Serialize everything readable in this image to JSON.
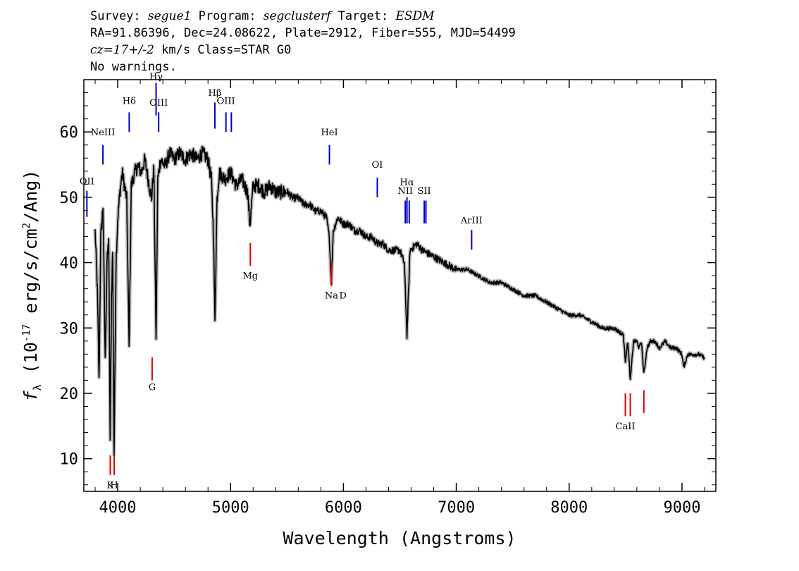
{
  "header": {
    "survey_label": "Survey: ",
    "survey": "segue1",
    "program_label": " Program: ",
    "program": "segclusterf",
    "target_label": " Target: ",
    "target": "ESDM",
    "line2": "RA=91.86396, Dec=24.08622, Plate=2912, Fiber=555, MJD=54499",
    "cz": "cz=17+/-2",
    "line3_rest": " km/s Class=STAR G0",
    "line4": "No warnings."
  },
  "chart_data": {
    "type": "line",
    "xlabel": "Wavelength (Angstroms)",
    "ylabel": "f_λ (10^-17 erg/s/cm^2/Ang)",
    "xlim": [
      3700,
      9300
    ],
    "ylim": [
      5,
      68
    ],
    "x_ticks": [
      4000,
      5000,
      6000,
      7000,
      8000,
      9000
    ],
    "y_ticks": [
      10,
      20,
      30,
      40,
      50,
      60
    ],
    "colors": {
      "spectrum": "#000000",
      "error": "#b8b8b8",
      "emission": "#0000cc",
      "absorption": "#dd0000"
    },
    "series": [
      {
        "values": [
          [
            3800,
            45
          ],
          [
            3820,
            36
          ],
          [
            3835,
            22
          ],
          [
            3850,
            44
          ],
          [
            3870,
            49
          ],
          [
            3889,
            25
          ],
          [
            3905,
            40
          ],
          [
            3920,
            44
          ],
          [
            3933,
            13
          ],
          [
            3945,
            35
          ],
          [
            3955,
            42
          ],
          [
            3968,
            11
          ],
          [
            3985,
            40
          ],
          [
            4000,
            47
          ],
          [
            4020,
            51
          ],
          [
            4040,
            54
          ],
          [
            4060,
            52
          ],
          [
            4080,
            50
          ],
          [
            4101,
            27
          ],
          [
            4120,
            52
          ],
          [
            4150,
            54
          ],
          [
            4180,
            55
          ],
          [
            4210,
            54
          ],
          [
            4240,
            56
          ],
          [
            4270,
            53
          ],
          [
            4300,
            50
          ],
          [
            4320,
            55
          ],
          [
            4340,
            28
          ],
          [
            4355,
            53
          ],
          [
            4380,
            56
          ],
          [
            4420,
            55
          ],
          [
            4460,
            57
          ],
          [
            4500,
            56
          ],
          [
            4550,
            57
          ],
          [
            4600,
            56
          ],
          [
            4650,
            57
          ],
          [
            4700,
            56
          ],
          [
            4750,
            57
          ],
          [
            4800,
            56
          ],
          [
            4830,
            53
          ],
          [
            4850,
            44
          ],
          [
            4861,
            31
          ],
          [
            4880,
            50
          ],
          [
            4900,
            54
          ],
          [
            4950,
            53
          ],
          [
            5000,
            54
          ],
          [
            5050,
            52
          ],
          [
            5100,
            53
          ],
          [
            5150,
            51
          ],
          [
            5172,
            46
          ],
          [
            5200,
            52
          ],
          [
            5250,
            52
          ],
          [
            5300,
            51
          ],
          [
            5350,
            52
          ],
          [
            5400,
            51
          ],
          [
            5450,
            51
          ],
          [
            5500,
            51
          ],
          [
            5550,
            50
          ],
          [
            5600,
            50
          ],
          [
            5650,
            49
          ],
          [
            5700,
            49
          ],
          [
            5750,
            48
          ],
          [
            5800,
            48
          ],
          [
            5850,
            47
          ],
          [
            5875,
            44
          ],
          [
            5893,
            37
          ],
          [
            5910,
            45
          ],
          [
            5950,
            47
          ],
          [
            6000,
            46
          ],
          [
            6050,
            46
          ],
          [
            6100,
            45
          ],
          [
            6150,
            45
          ],
          [
            6200,
            44
          ],
          [
            6250,
            44
          ],
          [
            6300,
            43
          ],
          [
            6350,
            43
          ],
          [
            6400,
            42
          ],
          [
            6450,
            42
          ],
          [
            6500,
            42
          ],
          [
            6540,
            40
          ],
          [
            6563,
            29
          ],
          [
            6590,
            42
          ],
          [
            6650,
            43
          ],
          [
            6700,
            42
          ],
          [
            6800,
            41
          ],
          [
            6900,
            40
          ],
          [
            7000,
            39
          ],
          [
            7100,
            39
          ],
          [
            7200,
            38
          ],
          [
            7300,
            37
          ],
          [
            7400,
            37
          ],
          [
            7500,
            36
          ],
          [
            7600,
            35
          ],
          [
            7700,
            35
          ],
          [
            7800,
            34
          ],
          [
            7900,
            33
          ],
          [
            8000,
            32
          ],
          [
            8100,
            32
          ],
          [
            8200,
            31
          ],
          [
            8300,
            30
          ],
          [
            8400,
            30
          ],
          [
            8480,
            29
          ],
          [
            8498,
            25
          ],
          [
            8520,
            28
          ],
          [
            8542,
            22
          ],
          [
            8570,
            28
          ],
          [
            8600,
            28
          ],
          [
            8620,
            27
          ],
          [
            8640,
            28
          ],
          [
            8662,
            23
          ],
          [
            8690,
            27
          ],
          [
            8720,
            28
          ],
          [
            8760,
            28
          ],
          [
            8800,
            27
          ],
          [
            8850,
            28
          ],
          [
            8900,
            27
          ],
          [
            8950,
            27
          ],
          [
            9000,
            26
          ],
          [
            9015,
            24
          ],
          [
            9050,
            26
          ],
          [
            9100,
            26
          ],
          [
            9150,
            26
          ],
          [
            9200,
            25.5
          ]
        ]
      }
    ],
    "emission_lines": [
      {
        "label": "OII",
        "wave": 3727,
        "y0": 47,
        "y1": 51,
        "label_y": 52
      },
      {
        "label": "NeIII",
        "wave": 3869,
        "y0": 55,
        "y1": 58,
        "label_y": 59.5
      },
      {
        "label": "Hδ",
        "wave": 4102,
        "y0": 60,
        "y1": 63,
        "label_y": 64.3
      },
      {
        "label": "Hγ",
        "wave": 4340,
        "y0": 62.5,
        "y1": 67.5,
        "label_y": 68
      },
      {
        "label": "OIII",
        "wave": 4363,
        "y0": 60,
        "y1": 63,
        "label_y": 64
      },
      {
        "label": "Hβ",
        "wave": 4861,
        "y0": 60.5,
        "y1": 64.5,
        "label_y": 65.5
      },
      {
        "label": "OIII",
        "wave": 4959,
        "y0": 60,
        "y1": 63,
        "label_y": 64.3
      },
      {
        "label": "OIII",
        "wave": 5007,
        "y0": 60,
        "y1": 63,
        "label_y": null
      },
      {
        "label": "HeI",
        "wave": 5876,
        "y0": 55,
        "y1": 58,
        "label_y": 59.5
      },
      {
        "label": "OI",
        "wave": 6300,
        "y0": 50,
        "y1": 53,
        "label_y": 54.5
      },
      {
        "label": "NII",
        "wave": 6548,
        "y0": 46,
        "y1": 49.5,
        "label_y": 50.5
      },
      {
        "label": "Hα",
        "wave": 6563,
        "y0": 46,
        "y1": 50,
        "label_y": 51.8
      },
      {
        "label": "NII",
        "wave": 6583,
        "y0": 46,
        "y1": 49.5,
        "label_y": null
      },
      {
        "label": "SII",
        "wave": 6716,
        "y0": 46,
        "y1": 49.5,
        "label_y": 50.5
      },
      {
        "label": "SII",
        "wave": 6731,
        "y0": 46,
        "y1": 49.5,
        "label_y": null
      },
      {
        "label": "ArIII",
        "wave": 7136,
        "y0": 42,
        "y1": 45,
        "label_y": 46
      }
    ],
    "absorption_lines": [
      {
        "label": "K",
        "wave": 3934,
        "y0": 7.5,
        "y1": 10.5,
        "label_y": 5.5
      },
      {
        "label": "H",
        "wave": 3969,
        "y0": 7.5,
        "y1": 10.5,
        "label_y": 5.5
      },
      {
        "label": "G",
        "wave": 4305,
        "y0": 22,
        "y1": 25.5,
        "label_y": 20.5
      },
      {
        "label": "Mg",
        "wave": 5175,
        "y0": 39.5,
        "y1": 43,
        "label_y": 37.5
      },
      {
        "label": "Na",
        "wave": 5894,
        "y0": 36.5,
        "y1": 40,
        "label_y": 34.5
      },
      {
        "label": "D",
        "wave": 5996,
        "y0": null,
        "y1": null,
        "label_y": 34.5
      },
      {
        "label": "CaII",
        "wave": 8498,
        "y0": 16.5,
        "y1": 20,
        "label_y": 14.5
      },
      {
        "label": "CaII",
        "wave": 8542,
        "y0": 16.5,
        "y1": 20,
        "label_y": null
      },
      {
        "label": "CaII",
        "wave": 8662,
        "y0": 17,
        "y1": 20.5,
        "label_y": null
      }
    ]
  }
}
